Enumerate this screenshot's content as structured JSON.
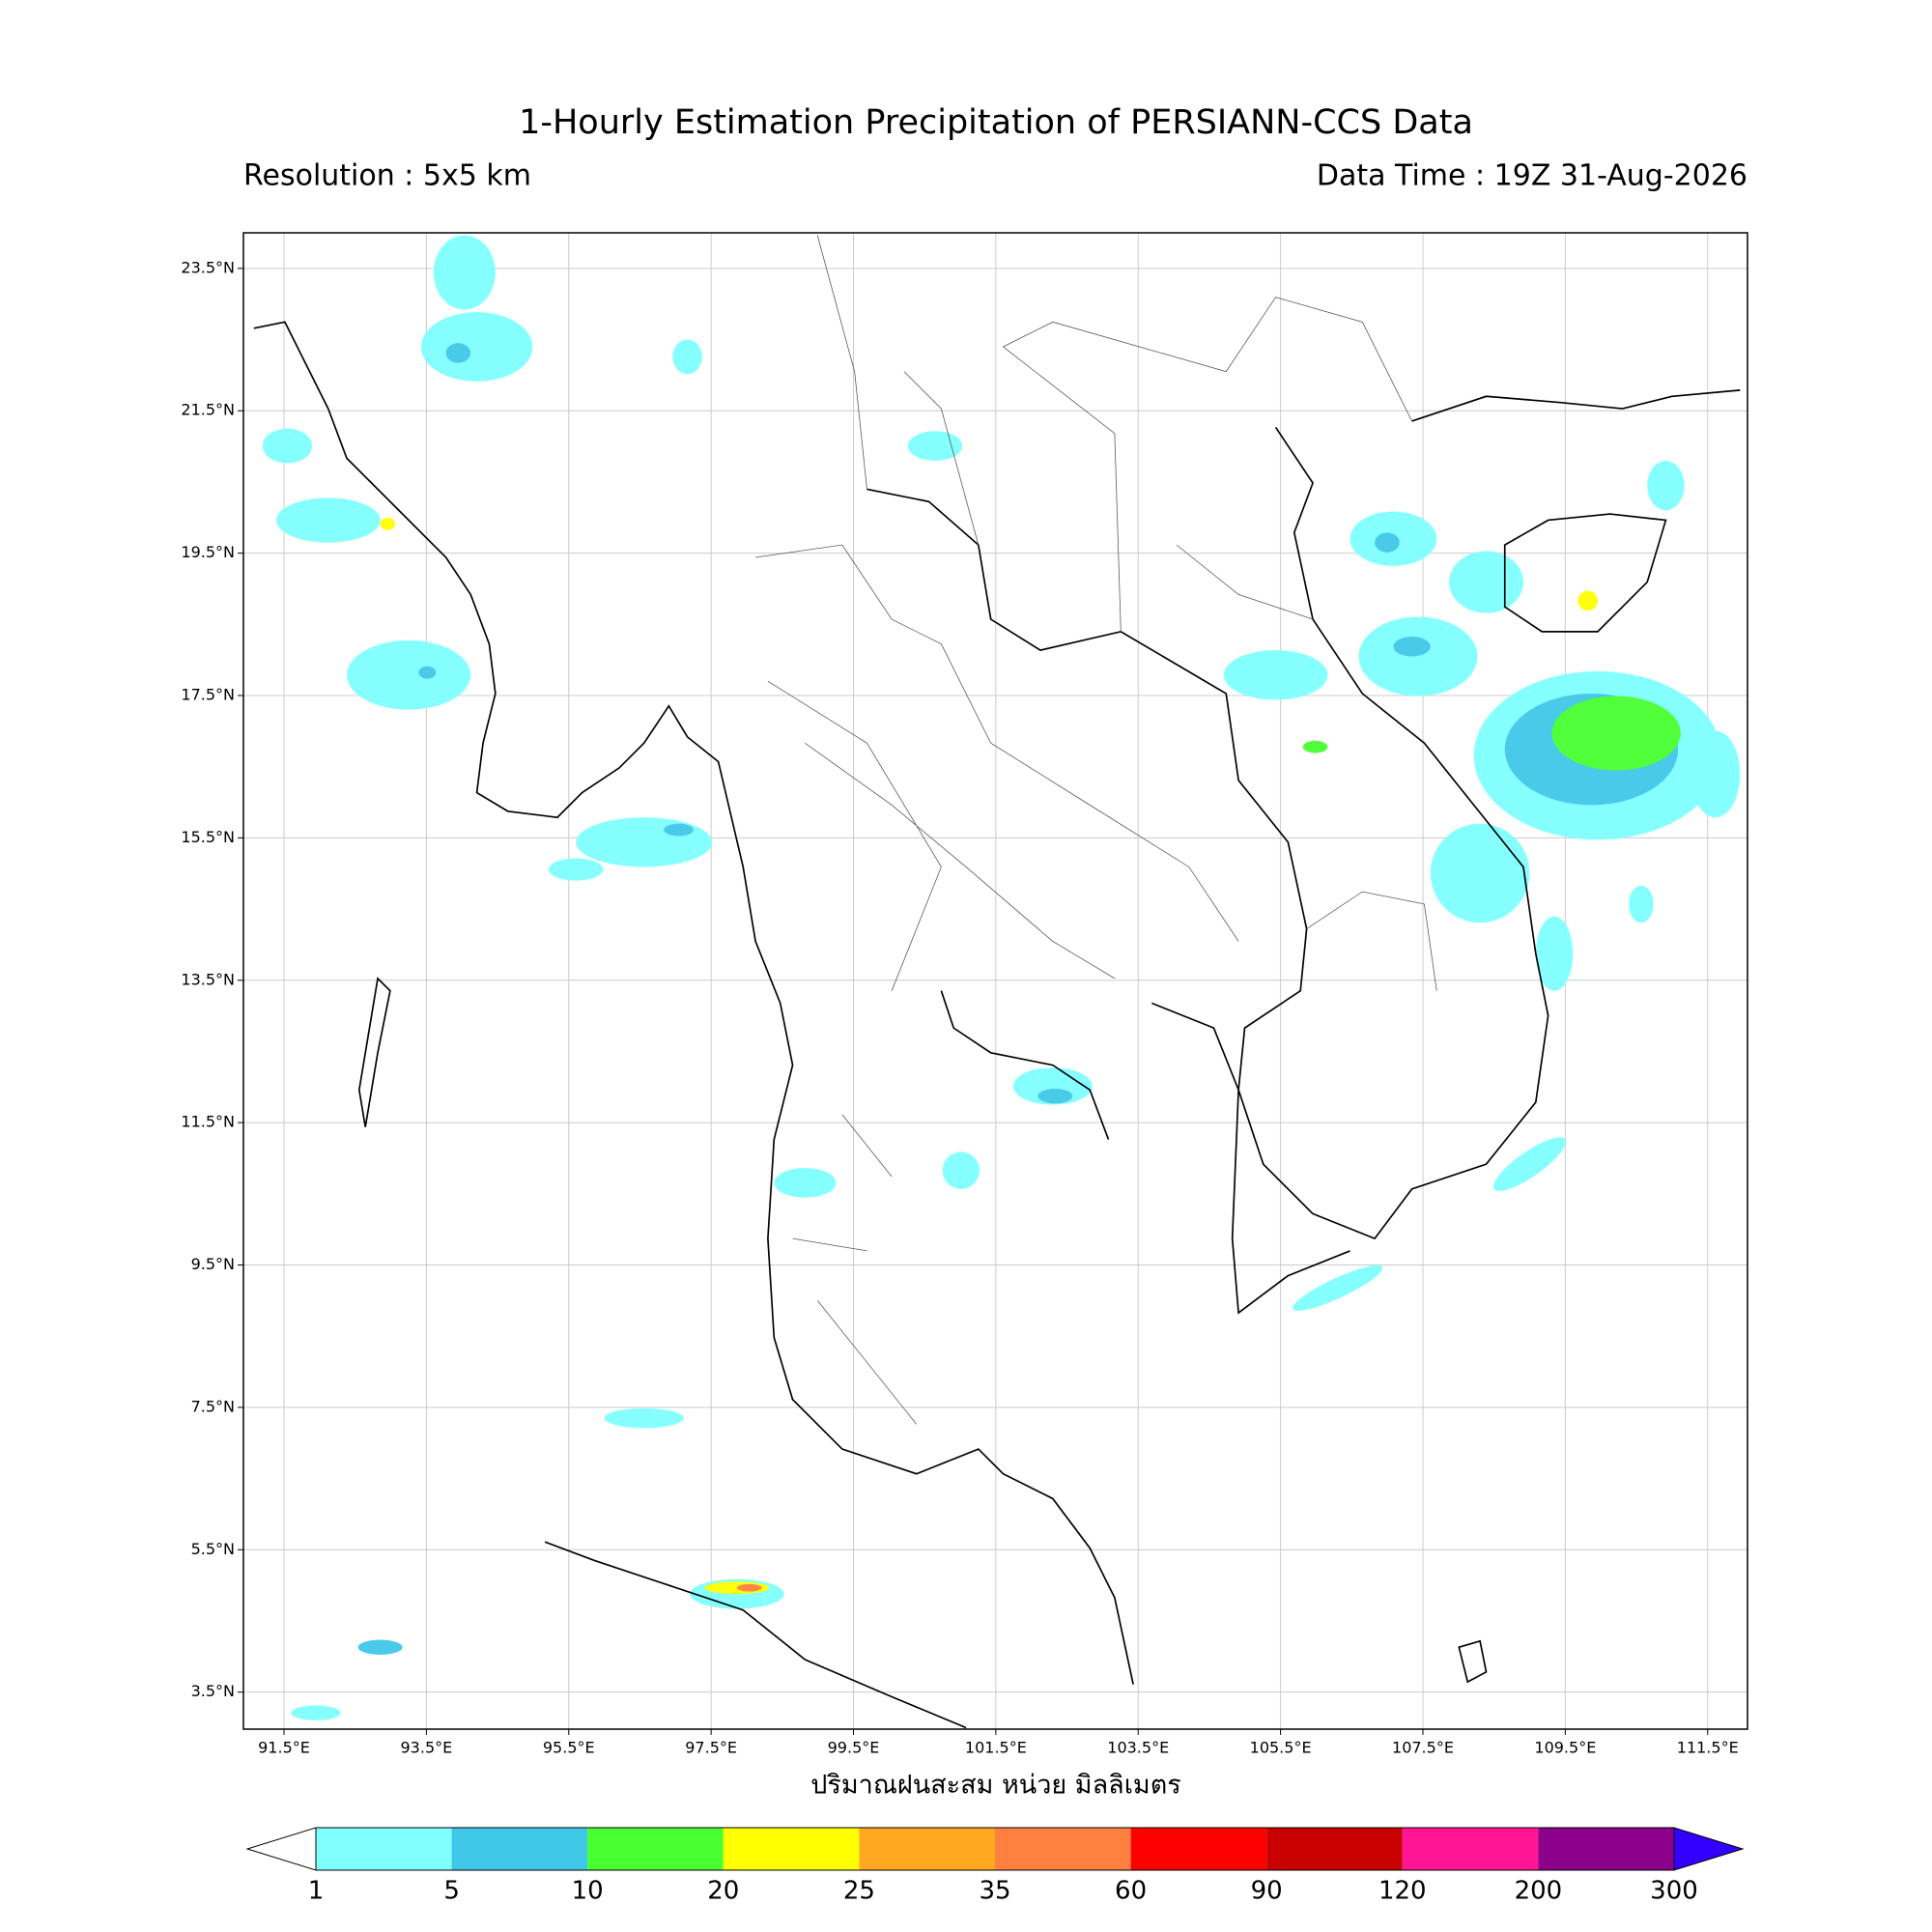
{
  "title": "1-Hourly Estimation Precipitation of PERSIANN-CCS Data",
  "resolution": "Resolution : 5x5 km",
  "data_time": "Data Time : 19Z 31-Aug-2026",
  "map": {
    "xlim": [
      90.93,
      112.06
    ],
    "ylim": [
      2.98,
      24.0
    ],
    "grid": true,
    "xticks": [
      {
        "value": 91.5,
        "label": "91.5°E"
      },
      {
        "value": 93.5,
        "label": "93.5°E"
      },
      {
        "value": 95.5,
        "label": "95.5°E"
      },
      {
        "value": 97.5,
        "label": "97.5°E"
      },
      {
        "value": 99.5,
        "label": "99.5°E"
      },
      {
        "value": 101.5,
        "label": "101.5°E"
      },
      {
        "value": 103.5,
        "label": "103.5°E"
      },
      {
        "value": 105.5,
        "label": "105.5°E"
      },
      {
        "value": 107.5,
        "label": "107.5°E"
      },
      {
        "value": 109.5,
        "label": "109.5°E"
      },
      {
        "value": 111.5,
        "label": "111.5°E"
      }
    ],
    "yticks": [
      {
        "value": 3.5,
        "label": "3.5°N"
      },
      {
        "value": 5.5,
        "label": "5.5°N"
      },
      {
        "value": 7.5,
        "label": "7.5°N"
      },
      {
        "value": 9.5,
        "label": "9.5°N"
      },
      {
        "value": 11.5,
        "label": "11.5°N"
      },
      {
        "value": 13.5,
        "label": "13.5°N"
      },
      {
        "value": 15.5,
        "label": "15.5°N"
      },
      {
        "value": 17.5,
        "label": "17.5°N"
      },
      {
        "value": 19.5,
        "label": "19.5°N"
      },
      {
        "value": 21.5,
        "label": "21.5°N"
      },
      {
        "value": 23.5,
        "label": "23.5°N"
      }
    ]
  },
  "colorbar": {
    "label": "ปริมาณฝนสะสม หน่วย มิลลิเมตร",
    "levels": [
      1,
      5,
      10,
      20,
      25,
      35,
      60,
      90,
      120,
      200,
      300
    ],
    "colors": [
      "#80ffff",
      "#40c8e8",
      "#48ff30",
      "#ffff00",
      "#ffa820",
      "#ff8040",
      "#ff0000",
      "#c80000",
      "#ff1493",
      "#8b008b"
    ],
    "under_color": "#ffffff",
    "over_color": "#3300ff"
  }
}
